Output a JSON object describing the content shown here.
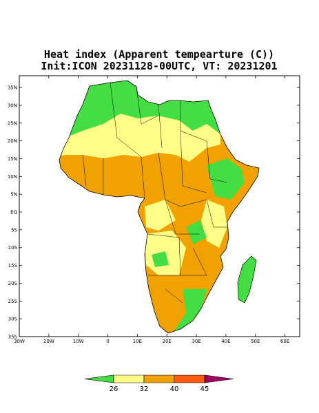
{
  "header": {
    "title": "Heat index (Apparent tempearture (C))",
    "subtitle": "Init:ICON 20231128-00UTC, VT: 20231201"
  },
  "map": {
    "lon_ticks": [
      {
        "value": -30,
        "label": "30W"
      },
      {
        "value": -20,
        "label": "20W"
      },
      {
        "value": -10,
        "label": "10W"
      },
      0,
      {
        "value": 10,
        "label": "10E"
      },
      {
        "value": 20,
        "label": "20E"
      },
      {
        "value": 30,
        "label": "30E"
      },
      {
        "value": 40,
        "label": "40E"
      },
      {
        "value": 50,
        "label": "50E"
      },
      {
        "value": 60,
        "label": "60E"
      }
    ],
    "lat_ticks": [
      {
        "value": 35,
        "label": "35N"
      },
      {
        "value": 30,
        "label": "30N"
      },
      {
        "value": 25,
        "label": "25N"
      },
      {
        "value": 20,
        "label": "20N"
      },
      {
        "value": 15,
        "label": "15N"
      },
      {
        "value": 10,
        "label": "10N"
      },
      {
        "value": 5,
        "label": "5N"
      },
      {
        "value": 0,
        "label": "EQ"
      },
      {
        "value": -5,
        "label": "5S"
      },
      {
        "value": -10,
        "label": "10S"
      },
      {
        "value": -15,
        "label": "15S"
      },
      {
        "value": -20,
        "label": "20S"
      },
      {
        "value": -25,
        "label": "25S"
      },
      {
        "value": -30,
        "label": "30S"
      },
      {
        "value": -35,
        "label": "35S"
      }
    ],
    "lonlim": [
      -30,
      65
    ],
    "latlim": [
      -35,
      38.3
    ]
  },
  "colorbar": {
    "levels": [
      26,
      32,
      40,
      45
    ],
    "colors": [
      "#44dd44",
      "#ffff88",
      "#f2a200",
      "#ff5a10",
      "#a00060"
    ]
  }
}
